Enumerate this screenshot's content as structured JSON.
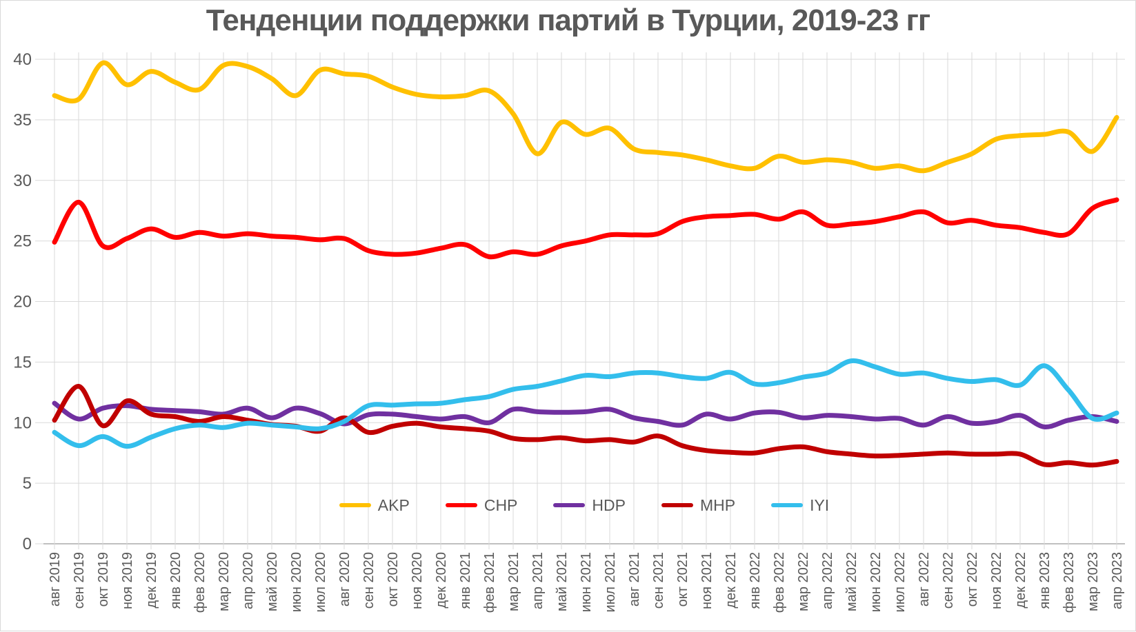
{
  "title": "Тенденции поддержки партий в Турции, 2019-23 гг",
  "colors": {
    "background": "#FFFFFF",
    "gridline": "#D9D9D9",
    "axis_line": "#BFBFBF",
    "tick_text": "#595959",
    "title_text": "#595959"
  },
  "chart_data": {
    "type": "line",
    "title": "Тенденции поддержки партий в Турции, 2019-23 гг",
    "smoothed": true,
    "grid": true,
    "legend_position": "bottom-center",
    "ylim": [
      0,
      40
    ],
    "y_ticks": [
      0,
      5,
      10,
      15,
      20,
      25,
      30,
      35,
      40
    ],
    "x_labels": [
      "авг 2019",
      "сен 2019",
      "окт 2019",
      "ноя 2019",
      "дек 2019",
      "янв 2020",
      "фев 2020",
      "мар 2020",
      "апр 2020",
      "май 2020",
      "июн 2020",
      "июл 2020",
      "авг 2020",
      "сен 2020",
      "окт 2020",
      "ноя 2020",
      "дек 2020",
      "янв 2021",
      "фев 2021",
      "мар 2021",
      "апр 2021",
      "май 2021",
      "июн 2021",
      "июл 2021",
      "авг 2021",
      "сен 2021",
      "окт 2021",
      "ноя 2021",
      "дек 2021",
      "янв 2022",
      "фев 2022",
      "мар 2022",
      "апр 2022",
      "май 2022",
      "июн 2022",
      "июл 2022",
      "авг 2022",
      "сен 2022",
      "окт 2022",
      "ноя 2022",
      "дек 2022",
      "янв 2023",
      "фев 2023",
      "мар 2023",
      "апр 2023"
    ],
    "series": [
      {
        "name": "AKP",
        "color": "#FFC000",
        "values": [
          37.0,
          36.7,
          39.7,
          37.9,
          39.0,
          38.1,
          37.5,
          39.5,
          39.4,
          38.4,
          37.0,
          39.1,
          38.8,
          38.6,
          37.7,
          37.1,
          36.9,
          37.0,
          37.4,
          35.5,
          32.2,
          34.8,
          33.8,
          34.3,
          32.6,
          32.3,
          32.1,
          31.7,
          31.2,
          31.0,
          32.0,
          31.5,
          31.7,
          31.5,
          31.0,
          31.2,
          30.8,
          31.5,
          32.2,
          33.4,
          33.7,
          33.8,
          34.0,
          32.4,
          35.2
        ]
      },
      {
        "name": "CHP",
        "color": "#FF0000",
        "values": [
          24.9,
          28.2,
          24.6,
          25.2,
          26.0,
          25.3,
          25.7,
          25.4,
          25.6,
          25.4,
          25.3,
          25.1,
          25.2,
          24.2,
          23.9,
          24.0,
          24.4,
          24.7,
          23.7,
          24.1,
          23.9,
          24.6,
          25.0,
          25.5,
          25.5,
          25.6,
          26.6,
          27.0,
          27.1,
          27.2,
          26.8,
          27.4,
          26.3,
          26.4,
          26.6,
          27.0,
          27.4,
          26.5,
          26.7,
          26.3,
          26.1,
          25.7,
          25.6,
          27.7,
          28.4
        ]
      },
      {
        "name": "HDP",
        "color": "#7030A0",
        "values": [
          11.6,
          10.3,
          11.2,
          11.4,
          11.1,
          11.0,
          10.9,
          10.7,
          11.2,
          10.4,
          11.2,
          10.75,
          9.9,
          10.65,
          10.7,
          10.5,
          10.3,
          10.5,
          10.0,
          11.1,
          10.9,
          10.85,
          10.9,
          11.1,
          10.4,
          10.1,
          9.8,
          10.7,
          10.3,
          10.8,
          10.85,
          10.4,
          10.6,
          10.5,
          10.3,
          10.35,
          9.8,
          10.5,
          9.95,
          10.1,
          10.6,
          9.65,
          10.2,
          10.5,
          10.1
        ]
      },
      {
        "name": "MHP",
        "color": "#C00000",
        "values": [
          10.2,
          13.0,
          9.75,
          11.8,
          10.7,
          10.5,
          10.1,
          10.5,
          10.2,
          9.85,
          9.7,
          9.3,
          10.4,
          9.2,
          9.7,
          9.95,
          9.65,
          9.5,
          9.3,
          8.7,
          8.6,
          8.75,
          8.5,
          8.6,
          8.4,
          8.9,
          8.1,
          7.7,
          7.55,
          7.5,
          7.85,
          8.0,
          7.6,
          7.4,
          7.25,
          7.3,
          7.4,
          7.5,
          7.4,
          7.4,
          7.4,
          6.55,
          6.7,
          6.5,
          6.8
        ]
      },
      {
        "name": "IYI",
        "color": "#33BEEC",
        "values": [
          9.2,
          8.1,
          8.85,
          8.05,
          8.8,
          9.5,
          9.8,
          9.6,
          9.95,
          9.8,
          9.65,
          9.5,
          10.1,
          11.4,
          11.45,
          11.55,
          11.6,
          11.9,
          12.15,
          12.75,
          13.0,
          13.45,
          13.9,
          13.8,
          14.1,
          14.1,
          13.8,
          13.65,
          14.15,
          13.2,
          13.3,
          13.75,
          14.1,
          15.1,
          14.6,
          14.0,
          14.1,
          13.65,
          13.4,
          13.55,
          13.1,
          14.7,
          12.7,
          10.35,
          10.8
        ]
      }
    ]
  }
}
